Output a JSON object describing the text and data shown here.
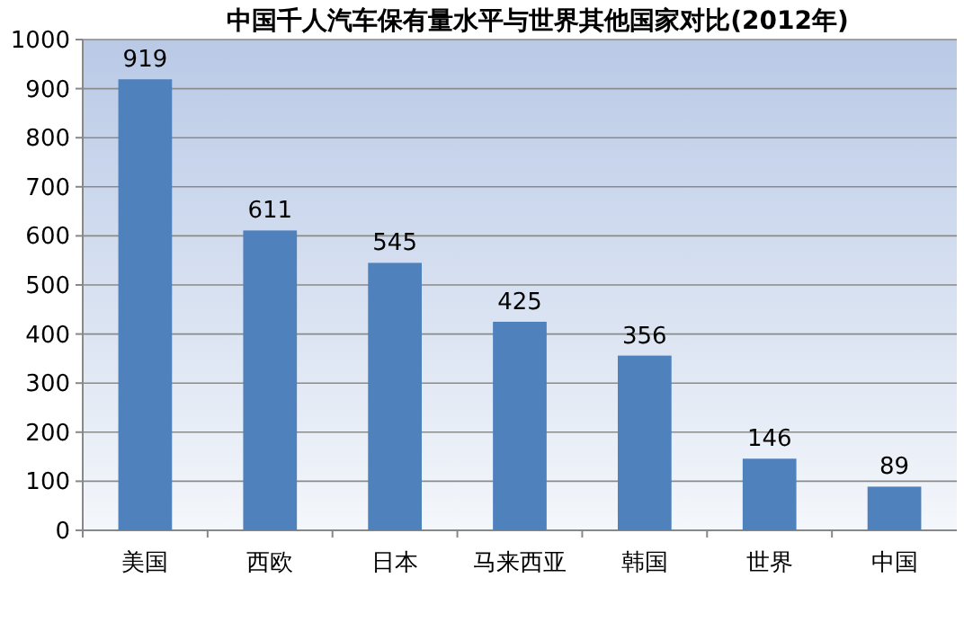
{
  "chart_data": {
    "type": "bar",
    "title": "中国千人汽车保有量水平与世界其他国家对比(2012年)",
    "categories": [
      "美国",
      "西欧",
      "日本",
      "马来西亚",
      "韩国",
      "世界",
      "中国"
    ],
    "values": [
      919,
      611,
      545,
      425,
      356,
      146,
      89
    ],
    "color": "#4f81bd",
    "ylim": [
      0,
      1000
    ],
    "yticks": [
      0,
      100,
      200,
      300,
      400,
      500,
      600,
      700,
      800,
      900,
      1000
    ],
    "grid": "y",
    "data_labels": true
  }
}
